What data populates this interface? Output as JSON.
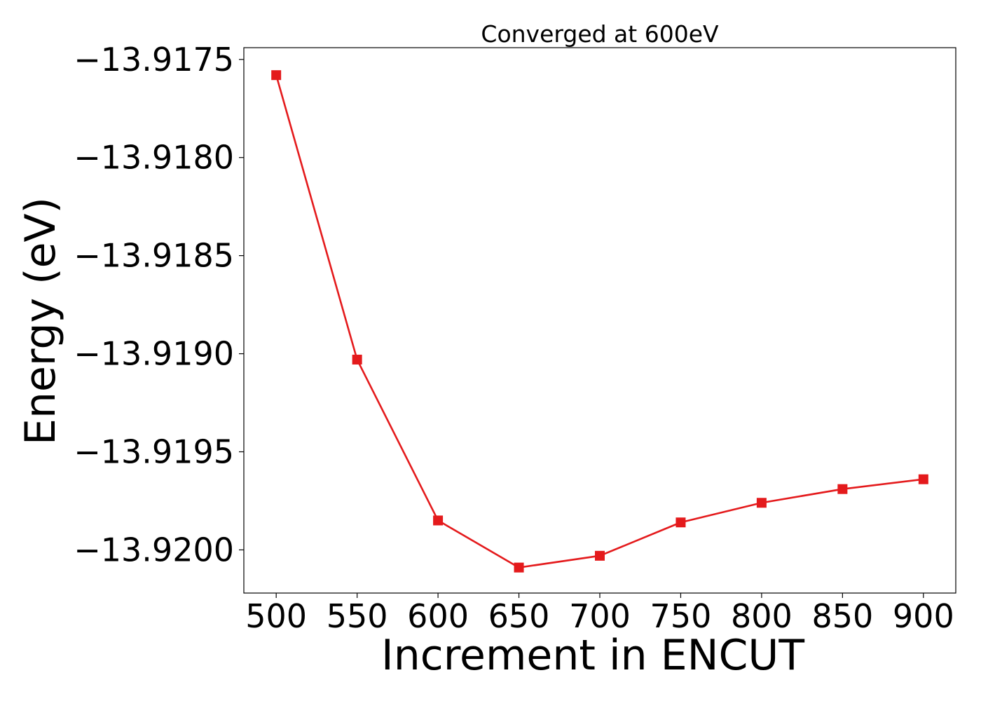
{
  "chart_data": {
    "type": "line",
    "title": "Converged at 600eV",
    "xlabel": "Increment in ENCUT",
    "ylabel": "Energy (eV)",
    "x": [
      500,
      550,
      600,
      650,
      700,
      750,
      800,
      850,
      900
    ],
    "series": [
      {
        "values": [
          -13.91758,
          -13.91903,
          -13.91985,
          -13.92009,
          -13.92003,
          -13.91986,
          -13.91976,
          -13.91969,
          -13.91964
        ],
        "color": "#e41a1c",
        "marker": "square"
      }
    ],
    "xlim": [
      480,
      920
    ],
    "ylim": [
      -13.92022,
      -13.91744
    ],
    "xticks": [
      500,
      550,
      600,
      650,
      700,
      750,
      800,
      850,
      900
    ],
    "xtick_labels": [
      "500",
      "550",
      "600",
      "650",
      "700",
      "750",
      "800",
      "850",
      "900"
    ],
    "yticks": [
      -13.9175,
      -13.918,
      -13.9185,
      -13.919,
      -13.9195,
      -13.92
    ],
    "ytick_labels": [
      "−13.9175",
      "−13.9180",
      "−13.9185",
      "−13.9190",
      "−13.9195",
      "−13.9200"
    ],
    "grid": false,
    "legend": "none"
  }
}
